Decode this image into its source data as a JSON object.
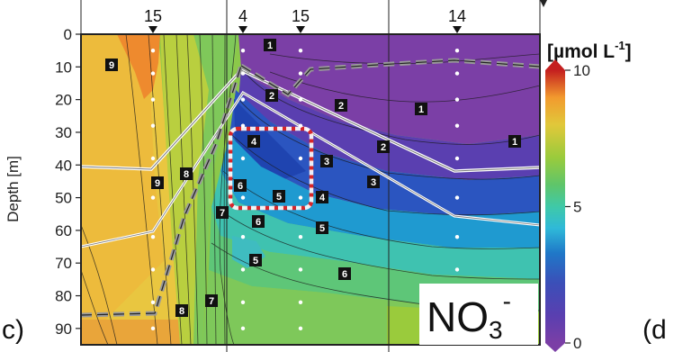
{
  "chart_data": {
    "type": "heatmap",
    "title": "",
    "variable": "NO3-",
    "variable_main": "NO",
    "variable_sub": "3",
    "variable_sup": "-",
    "xlabel": "",
    "ylabel": "Depth [m]",
    "ylim": [
      0,
      95
    ],
    "y_ticks": [
      0,
      10,
      20,
      30,
      40,
      50,
      60,
      70,
      80,
      90
    ],
    "stations": [
      {
        "label": "15"
      },
      {
        "label": "4"
      },
      {
        "label": "15"
      },
      {
        "label": "14"
      }
    ],
    "colorbar": {
      "unit_main": "[µmol L",
      "unit_sup": "-1",
      "unit_end": "]",
      "min": 0,
      "max": 10,
      "ticks": [
        {
          "value": 10,
          "label": "10"
        },
        {
          "value": 5,
          "label": "5"
        },
        {
          "value": 0,
          "label": "0"
        }
      ],
      "colors": [
        "#7b3fa6",
        "#3b4fb8",
        "#1f78c8",
        "#2fb9d9",
        "#3fc9a8",
        "#5fc56a",
        "#9acb3c",
        "#e1c83a",
        "#f29a2e",
        "#e84a26",
        "#c41f1f"
      ]
    },
    "water_mass_labels": [
      "1",
      "1",
      "1",
      "2",
      "2",
      "2",
      "3",
      "3",
      "4",
      "4",
      "5",
      "5",
      "5",
      "6",
      "6",
      "6",
      "7",
      "7",
      "8",
      "8",
      "9",
      "9"
    ],
    "panel_labels": {
      "left": "c)",
      "right": "(d"
    },
    "grid": true
  }
}
